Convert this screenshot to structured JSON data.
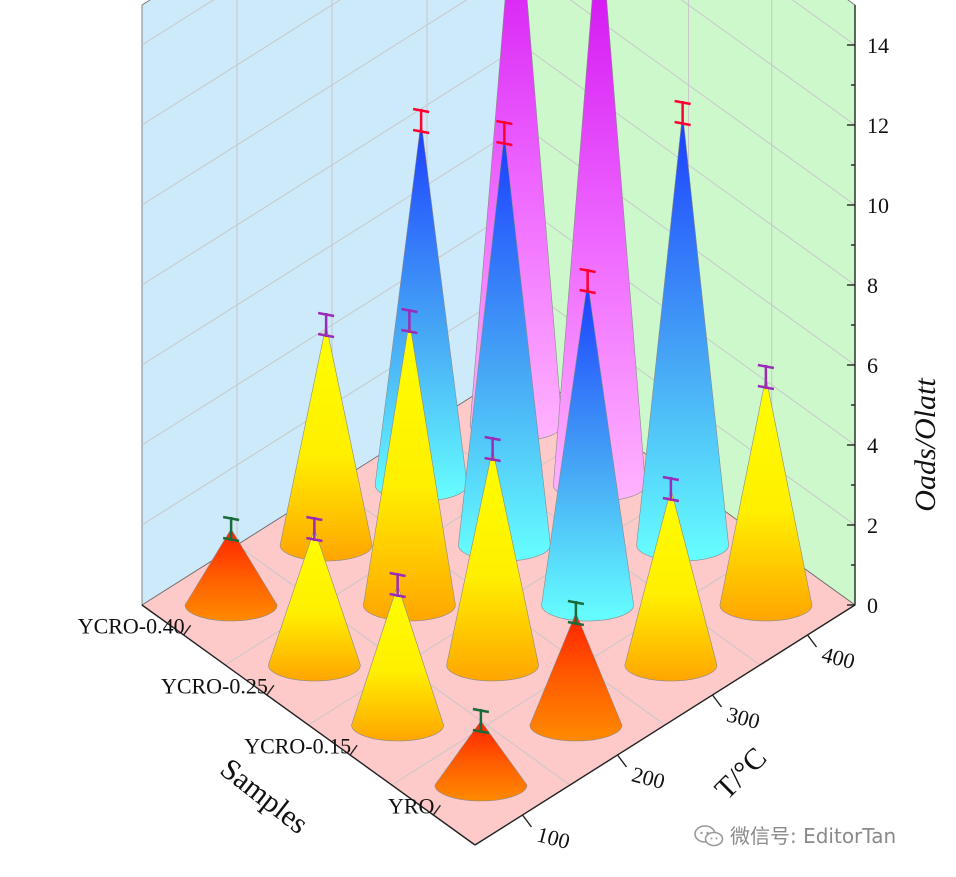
{
  "chart_data": {
    "type": "bar3d-cone",
    "ylabel": "Oads/Olatt",
    "xlabel": "Samples",
    "zlabel": "T/°C",
    "samples": [
      "YRO",
      "YCRO-0.15",
      "YCRO-0.25",
      "YCRO-0.40"
    ],
    "temperatures": [
      100,
      200,
      300,
      400
    ],
    "ylim": [
      0,
      15
    ],
    "yticks": [
      0,
      2,
      4,
      6,
      8,
      10,
      12,
      14
    ],
    "grid": true,
    "series": [
      {
        "sample": "YRO",
        "values": [
          1.6,
          2.8,
          4.4,
          5.7
        ],
        "errors": [
          0.3,
          0.3,
          0.3,
          0.3
        ]
      },
      {
        "sample": "YCRO-0.15",
        "values": [
          3.5,
          5.4,
          8.1,
          10.8
        ],
        "errors": [
          0.3,
          0.3,
          0.3,
          0.3
        ]
      },
      {
        "sample": "YCRO-0.25",
        "values": [
          3.4,
          7.1,
          10.3,
          14.4
        ],
        "errors": [
          0.3,
          0.3,
          0.3,
          0.3
        ]
      },
      {
        "sample": "YCRO-0.40",
        "values": [
          1.9,
          5.5,
          9.1,
          14.0
        ],
        "errors": [
          0.3,
          0.3,
          0.3,
          0.3
        ]
      }
    ],
    "colors": {
      "wall_left": "#cdeafa",
      "wall_right": "#ccf8cc",
      "floor": "#fdc9c9",
      "grid": "#c8c8c8",
      "axis": "#222222"
    }
  },
  "watermark": "微信号: EditorTan"
}
